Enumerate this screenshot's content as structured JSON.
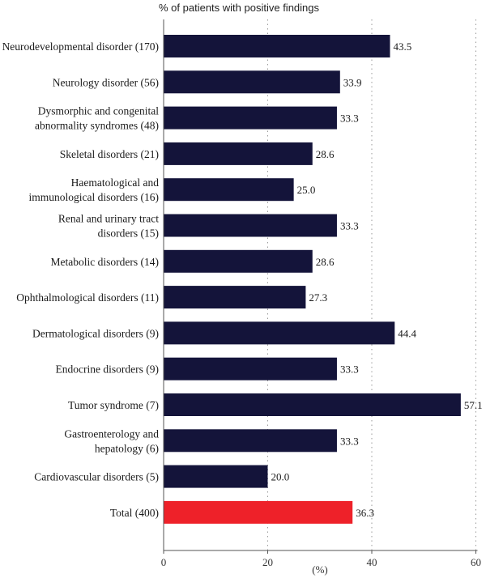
{
  "chart_data": {
    "type": "bar",
    "orientation": "horizontal",
    "title": "% of patients with positive findings",
    "xlabel": "(%)",
    "xlim": [
      0,
      60
    ],
    "xticks": [
      0,
      20,
      40,
      60
    ],
    "grid": "vertical dotted lines at 20, 40, 60",
    "categories": [
      [
        "Neurodevelopmental disorder (170)"
      ],
      [
        "Neurology disorder (56)"
      ],
      [
        "Dysmorphic and congenital",
        "abnormality syndromes (48)"
      ],
      [
        "Skeletal disorders (21)"
      ],
      [
        "Haematological and",
        "immunological disorders (16)"
      ],
      [
        "Renal and urinary tract",
        "disorders (15)"
      ],
      [
        "Metabolic disorders (14)"
      ],
      [
        "Ophthalmological disorders (11)"
      ],
      [
        "Dermatological disorders (9)"
      ],
      [
        "Endocrine disorders (9)"
      ],
      [
        "Tumor syndrome (7)"
      ],
      [
        "Gastroenterology and",
        "hepatology (6)"
      ],
      [
        "Cardiovascular disorders (5)"
      ],
      [
        "Total (400)"
      ]
    ],
    "values": [
      43.5,
      33.9,
      33.3,
      28.6,
      25.0,
      33.3,
      28.6,
      27.3,
      44.4,
      33.3,
      57.1,
      33.3,
      20.0,
      36.3
    ],
    "value_labels": [
      "43.5",
      "33.9",
      "33.3",
      "28.6",
      "25.0",
      "33.3",
      "28.6",
      "27.3",
      "44.4",
      "33.3",
      "57.1",
      "33.3",
      "20.0",
      "36.3"
    ],
    "highlight_index": 13,
    "colors": {
      "bar": "#14143a",
      "highlight_bar": "#ee2129",
      "highlight_label": "#ee2129",
      "grid": "#999999",
      "axis": "#555555"
    }
  }
}
